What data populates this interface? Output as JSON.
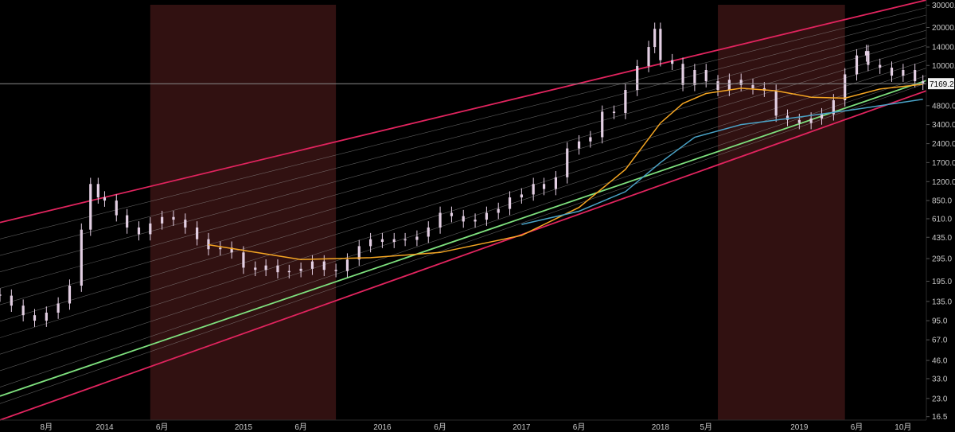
{
  "chart_data": {
    "type": "candlestick-log",
    "title": "",
    "xlabel": "",
    "ylabel": "",
    "scale": "log",
    "ylim": [
      15.5,
      33000
    ],
    "x_range": [
      "2013-04-01",
      "2019-12-01"
    ],
    "y_ticks": [
      "30000.0",
      "20000.0",
      "14000.0",
      "10000.0",
      "4800.0",
      "3400.0",
      "2400.0",
      "1700.0",
      "1200.0",
      "850.0",
      "610.0",
      "435.0",
      "295.0",
      "195.0",
      "135.0",
      "95.0",
      "67.0",
      "46.0",
      "33.0",
      "23.0",
      "16.5"
    ],
    "x_ticks": [
      {
        "label": "8月",
        "date": "2013-08-01"
      },
      {
        "label": "2014",
        "date": "2014-01-01"
      },
      {
        "label": "6月",
        "date": "2014-06-01"
      },
      {
        "label": "2015",
        "date": "2015-01-01"
      },
      {
        "label": "6月",
        "date": "2015-06-01"
      },
      {
        "label": "2016",
        "date": "2016-01-01"
      },
      {
        "label": "6月",
        "date": "2016-06-01"
      },
      {
        "label": "2017",
        "date": "2017-01-01"
      },
      {
        "label": "6月",
        "date": "2017-06-01"
      },
      {
        "label": "2018",
        "date": "2018-01-01"
      },
      {
        "label": "5月",
        "date": "2018-05-01"
      },
      {
        "label": "2019",
        "date": "2019-01-01"
      },
      {
        "label": "6月",
        "date": "2019-06-01"
      },
      {
        "label": "10月",
        "date": "2019-10-01"
      }
    ],
    "last_price": {
      "label": "7169.2",
      "value": 7169.2
    },
    "shaded_periods": [
      {
        "start": "2014-05-01",
        "end": "2015-09-01"
      },
      {
        "start": "2018-06-01",
        "end": "2019-05-01"
      }
    ],
    "channel_lines": [
      {
        "name": "",
        "color": "#e0245e",
        "points": [
          [
            "2013-04-01",
            570
          ],
          [
            "2019-12-01",
            33000
          ]
        ]
      },
      {
        "name": "",
        "color": "#e0245e",
        "points": [
          [
            "2013-04-01",
            15.5
          ],
          [
            "2019-12-01",
            6300
          ]
        ]
      },
      {
        "name": "",
        "color": "#7ee07e",
        "points": [
          [
            "2013-04-01",
            24
          ],
          [
            "2019-12-01",
            7600
          ]
        ]
      }
    ],
    "series": [
      {
        "type": "candles",
        "color": "#e3cfe3",
        "points": [
          [
            "2013-04-01",
            150
          ],
          [
            "2013-05-01",
            125
          ],
          [
            "2013-06-01",
            105
          ],
          [
            "2013-07-01",
            95
          ],
          [
            "2013-08-01",
            110
          ],
          [
            "2013-09-01",
            130
          ],
          [
            "2013-10-01",
            180
          ],
          [
            "2013-11-01",
            500
          ],
          [
            "2013-11-25",
            1150
          ],
          [
            "2013-12-15",
            900
          ],
          [
            "2014-01-01",
            850
          ],
          [
            "2014-02-01",
            650
          ],
          [
            "2014-03-01",
            520
          ],
          [
            "2014-04-01",
            460
          ],
          [
            "2014-05-01",
            560
          ],
          [
            "2014-06-01",
            630
          ],
          [
            "2014-07-01",
            600
          ],
          [
            "2014-08-01",
            520
          ],
          [
            "2014-09-01",
            420
          ],
          [
            "2014-10-01",
            350
          ],
          [
            "2014-11-01",
            360
          ],
          [
            "2014-12-01",
            330
          ],
          [
            "2015-01-01",
            250
          ],
          [
            "2015-02-01",
            240
          ],
          [
            "2015-03-01",
            260
          ],
          [
            "2015-04-01",
            230
          ],
          [
            "2015-05-01",
            235
          ],
          [
            "2015-06-01",
            245
          ],
          [
            "2015-07-01",
            280
          ],
          [
            "2015-08-01",
            240
          ],
          [
            "2015-09-01",
            235
          ],
          [
            "2015-10-01",
            290
          ],
          [
            "2015-11-01",
            370
          ],
          [
            "2015-12-01",
            420
          ],
          [
            "2016-01-01",
            400
          ],
          [
            "2016-02-01",
            420
          ],
          [
            "2016-03-01",
            415
          ],
          [
            "2016-04-01",
            440
          ],
          [
            "2016-05-01",
            520
          ],
          [
            "2016-06-01",
            680
          ],
          [
            "2016-07-01",
            640
          ],
          [
            "2016-08-01",
            580
          ],
          [
            "2016-09-01",
            600
          ],
          [
            "2016-10-01",
            680
          ],
          [
            "2016-11-01",
            730
          ],
          [
            "2016-12-01",
            900
          ],
          [
            "2017-01-01",
            950
          ],
          [
            "2017-02-01",
            1150
          ],
          [
            "2017-03-01",
            1050
          ],
          [
            "2017-04-01",
            1300
          ],
          [
            "2017-05-01",
            2200
          ],
          [
            "2017-06-01",
            2500
          ],
          [
            "2017-07-01",
            2700
          ],
          [
            "2017-08-01",
            4300
          ],
          [
            "2017-09-01",
            4200
          ],
          [
            "2017-10-01",
            6400
          ],
          [
            "2017-11-01",
            9900
          ],
          [
            "2017-12-01",
            14000
          ],
          [
            "2017-12-17",
            19500
          ],
          [
            "2018-01-01",
            11000
          ],
          [
            "2018-02-01",
            10300
          ],
          [
            "2018-03-01",
            7000
          ],
          [
            "2018-04-01",
            9200
          ],
          [
            "2018-05-01",
            7500
          ],
          [
            "2018-06-01",
            6400
          ],
          [
            "2018-07-01",
            7700
          ],
          [
            "2018-08-01",
            7000
          ],
          [
            "2018-09-01",
            6600
          ],
          [
            "2018-10-01",
            6300
          ],
          [
            "2018-11-01",
            4000
          ],
          [
            "2018-12-01",
            3700
          ],
          [
            "2019-01-01",
            3500
          ],
          [
            "2019-02-01",
            3800
          ],
          [
            "2019-03-01",
            4100
          ],
          [
            "2019-04-01",
            5300
          ],
          [
            "2019-05-01",
            8500
          ],
          [
            "2019-06-01",
            12000
          ],
          [
            "2019-06-26",
            13000
          ],
          [
            "2019-07-01",
            10100
          ],
          [
            "2019-08-01",
            9600
          ],
          [
            "2019-09-01",
            8300
          ],
          [
            "2019-10-01",
            9200
          ],
          [
            "2019-11-01",
            7500
          ],
          [
            "2019-11-22",
            7169.2
          ]
        ]
      },
      {
        "type": "line",
        "color": "#f5a623",
        "points": [
          [
            "2014-10-01",
            380
          ],
          [
            "2015-06-01",
            290
          ],
          [
            "2015-12-01",
            300
          ],
          [
            "2016-06-01",
            330
          ],
          [
            "2017-01-01",
            450
          ],
          [
            "2017-06-01",
            750
          ],
          [
            "2017-10-01",
            1500
          ],
          [
            "2018-01-01",
            3500
          ],
          [
            "2018-03-01",
            5000
          ],
          [
            "2018-05-01",
            6000
          ],
          [
            "2018-08-01",
            6600
          ],
          [
            "2018-11-01",
            6300
          ],
          [
            "2019-02-01",
            5600
          ],
          [
            "2019-05-01",
            5500
          ],
          [
            "2019-08-01",
            6500
          ],
          [
            "2019-11-22",
            7100
          ]
        ]
      },
      {
        "type": "line",
        "color": "#4aa3c7",
        "points": [
          [
            "2017-01-01",
            550
          ],
          [
            "2017-06-01",
            700
          ],
          [
            "2017-10-01",
            1000
          ],
          [
            "2018-01-01",
            1700
          ],
          [
            "2018-04-01",
            2700
          ],
          [
            "2018-08-01",
            3400
          ],
          [
            "2019-01-01",
            3900
          ],
          [
            "2019-06-01",
            4500
          ],
          [
            "2019-11-22",
            5400
          ]
        ]
      }
    ]
  }
}
